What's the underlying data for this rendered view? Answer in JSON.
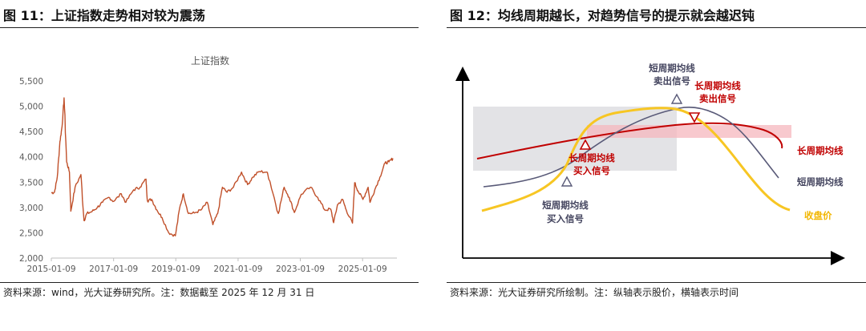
{
  "left": {
    "figure_title": "图 11：上证指数走势相对较为震荡",
    "source": "资料来源：wind，光大证券研究所。注：数据截至 2025 年 12 月 31 日"
  },
  "right": {
    "figure_title": "图 12：均线周期越长，对趋势信号的提示就会越迟钝",
    "source": "资料来源：光大证券研究所绘制。注：纵轴表示股价，横轴表示时间",
    "labels": {
      "short_sell_1": "短周期均线",
      "short_sell_2": "卖出信号",
      "long_sell_1": "长周期均线",
      "long_sell_2": "卖出信号",
      "long_buy_1": "长周期均线",
      "long_buy_2": "买入信号",
      "short_buy_1": "短周期均线",
      "short_buy_2": "买入信号",
      "legend_long": "长周期均线",
      "legend_short": "短周期均线",
      "legend_close": "收盘价"
    },
    "colors": {
      "long_ma": "#c00000",
      "short_ma": "#595a78",
      "close": "#f7c623",
      "band_gray": "#d9d9de",
      "band_pink": "#f5b7bd"
    }
  },
  "chart_data": [
    {
      "type": "line",
      "title": "上证指数",
      "xlabel": "",
      "ylabel": "",
      "x_ticks": [
        "2015-01-09",
        "2017-01-09",
        "2019-01-09",
        "2021-01-09",
        "2023-01-09",
        "2025-01-09"
      ],
      "y_ticks": [
        "2,000",
        "2,500",
        "3,000",
        "3,500",
        "4,000",
        "4,500",
        "5,000",
        "5,500"
      ],
      "ylim": [
        2000,
        5500
      ],
      "xlim": [
        "2015-01-09",
        "2025-12-31"
      ],
      "color": "#c0502a",
      "series": [
        {
          "x": [
            "2015-01-09",
            "2015-02-15",
            "2015-03-20",
            "2015-04-20",
            "2015-05-15",
            "2015-06-08",
            "2015-07-08",
            "2015-08-10",
            "2015-08-26",
            "2015-10-15",
            "2015-12-22",
            "2016-01-28",
            "2016-03-01",
            "2016-05-01",
            "2016-07-01",
            "2016-09-01",
            "2016-11-15",
            "2017-01-09",
            "2017-04-10",
            "2017-06-01",
            "2017-09-01",
            "2017-11-15",
            "2018-01-24",
            "2018-02-09",
            "2018-04-01",
            "2018-06-01",
            "2018-08-01",
            "2018-10-18",
            "2019-01-04",
            "2019-02-25",
            "2019-04-08",
            "2019-06-06",
            "2019-08-15",
            "2019-11-01",
            "2020-01-13",
            "2020-03-19",
            "2020-05-15",
            "2020-07-09",
            "2020-09-01",
            "2020-11-15",
            "2021-02-18",
            "2021-05-01",
            "2021-07-01",
            "2021-09-13",
            "2021-12-13",
            "2022-01-20",
            "2022-04-26",
            "2022-07-04",
            "2022-09-01",
            "2022-10-31",
            "2023-01-20",
            "2023-05-09",
            "2023-08-01",
            "2023-10-23",
            "2024-01-01",
            "2024-02-05",
            "2024-03-20",
            "2024-05-20",
            "2024-07-01",
            "2024-09-13",
            "2024-10-08",
            "2024-11-15",
            "2025-01-13",
            "2025-03-15",
            "2025-04-07",
            "2025-06-01",
            "2025-08-01",
            "2025-09-30",
            "2025-11-15",
            "2025-12-31"
          ],
          "values": [
            3290,
            3300,
            3600,
            4300,
            4600,
            5166,
            3900,
            3700,
            2927,
            3400,
            3650,
            2740,
            2880,
            2920,
            3000,
            3100,
            3200,
            3120,
            3270,
            3100,
            3350,
            3400,
            3560,
            3130,
            3160,
            2950,
            2800,
            2500,
            2440,
            3000,
            3270,
            2880,
            2890,
            2950,
            3100,
            2660,
            2880,
            3400,
            3300,
            3400,
            3700,
            3450,
            3600,
            3710,
            3700,
            3500,
            2880,
            3400,
            3200,
            2900,
            3260,
            3400,
            3200,
            2950,
            2970,
            2700,
            3050,
            3160,
            2950,
            2690,
            3490,
            3330,
            3160,
            3400,
            3100,
            3350,
            3600,
            3880,
            3900,
            3970
          ]
        }
      ]
    },
    {
      "type": "line",
      "title": "",
      "xlabel": "",
      "ylabel": "",
      "notes": "Conceptual diagram (no numeric axes): close price rises then falls; short-period MA and long-period MA lag behind, producing buy/sell signals later for longer periods.",
      "series": [
        {
          "name": "收盘价"
        },
        {
          "name": "短周期均线"
        },
        {
          "name": "长周期均线"
        }
      ]
    }
  ]
}
